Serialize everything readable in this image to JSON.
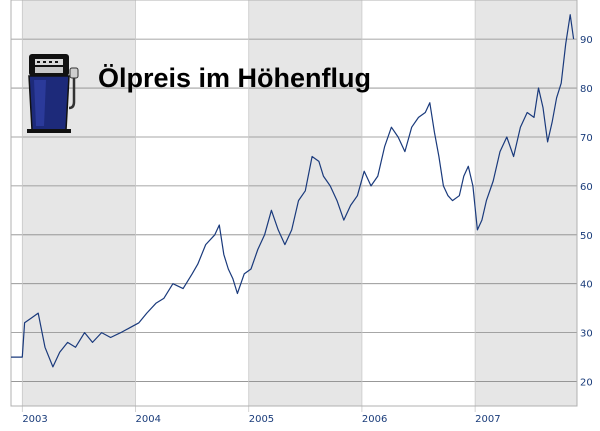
{
  "colors": {
    "line": "#1a3a7c",
    "band": "#e6e6e6",
    "grid": "#8a8a8a",
    "axis_text": "#1a3c7a",
    "icon_body": "#1d2a7a",
    "icon_dark": "#111111"
  },
  "icon": "fuel-pump-icon",
  "chart_data": {
    "type": "line",
    "title": "Ölpreis im Höhenflug",
    "xlabel": "",
    "ylabel": "",
    "x_tick_labels": [
      "2003",
      "2004",
      "2005",
      "2006",
      "2007"
    ],
    "y_tick_labels": [
      "20",
      "30",
      "40",
      "50",
      "60",
      "70",
      "80",
      "90"
    ],
    "xlim": [
      2002.9,
      2007.9
    ],
    "ylim": [
      15,
      98
    ],
    "grid": true,
    "shaded_years": [
      2003,
      2005,
      2007
    ],
    "series": [
      {
        "x": [
          2002.9,
          2003.0,
          2003.02,
          2003.08,
          2003.14,
          2003.2,
          2003.27,
          2003.33,
          2003.4,
          2003.47,
          2003.55,
          2003.62,
          2003.7,
          2003.78,
          2003.87,
          2003.95,
          2004.03,
          2004.1,
          2004.18,
          2004.25,
          2004.33,
          2004.42,
          2004.5,
          2004.55,
          2004.62,
          2004.7,
          2004.74,
          2004.78,
          2004.82,
          2004.86,
          2004.9,
          2004.96,
          2005.02,
          2005.08,
          2005.14,
          2005.2,
          2005.26,
          2005.32,
          2005.38,
          2005.44,
          2005.5,
          2005.56,
          2005.62,
          2005.66,
          2005.72,
          2005.78,
          2005.84,
          2005.9,
          2005.96,
          2006.02,
          2006.08,
          2006.14,
          2006.2,
          2006.26,
          2006.32,
          2006.38,
          2006.44,
          2006.5,
          2006.56,
          2006.6,
          2006.64,
          2006.68,
          2006.72,
          2006.76,
          2006.8,
          2006.86,
          2006.9,
          2006.94,
          2006.98,
          2007.02,
          2007.06,
          2007.1,
          2007.16,
          2007.22,
          2007.28,
          2007.34,
          2007.4,
          2007.46,
          2007.52,
          2007.56,
          2007.6,
          2007.64,
          2007.68,
          2007.72,
          2007.76,
          2007.8,
          2007.84,
          2007.87
        ],
        "y": [
          25,
          25,
          32,
          33,
          34,
          27,
          23,
          26,
          28,
          27,
          30,
          28,
          30,
          29,
          30,
          31,
          32,
          34,
          36,
          37,
          40,
          39,
          42,
          44,
          48,
          50,
          52,
          46,
          43,
          41,
          38,
          42,
          43,
          47,
          50,
          55,
          51,
          48,
          51,
          57,
          59,
          66,
          65,
          62,
          60,
          57,
          53,
          56,
          58,
          63,
          60,
          62,
          68,
          72,
          70,
          67,
          72,
          74,
          75,
          77,
          71,
          66,
          60,
          58,
          57,
          58,
          62,
          64,
          60,
          51,
          53,
          57,
          61,
          67,
          70,
          66,
          72,
          75,
          74,
          80,
          76,
          69,
          73,
          78,
          81,
          89,
          95,
          90
        ]
      }
    ]
  }
}
